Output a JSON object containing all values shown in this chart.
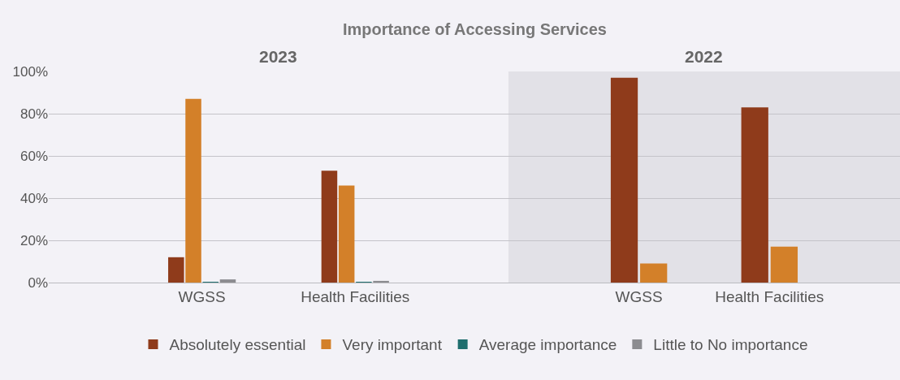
{
  "chart_data": [
    {
      "type": "bar",
      "title": "Importance of Accessing Services",
      "subtitle": "2023",
      "categories": [
        "WGSS",
        "Health Facilities"
      ],
      "series": [
        {
          "name": "Absolutely essential",
          "color": "#8f3b1b",
          "values": [
            12,
            53
          ]
        },
        {
          "name": "Very important",
          "color": "#d38029",
          "values": [
            87,
            46
          ]
        },
        {
          "name": "Average importance",
          "color": "#1f6e6e",
          "values": [
            0.2,
            0.2
          ]
        },
        {
          "name": "Little to No importance",
          "color": "#8c8c90",
          "values": [
            1.5,
            0.8
          ]
        }
      ],
      "ylim": [
        0,
        100
      ],
      "yticks": [
        {
          "value": 0,
          "label": "0%"
        },
        {
          "value": 20,
          "label": "20%"
        },
        {
          "value": 40,
          "label": "40%"
        },
        {
          "value": 60,
          "label": "60%"
        },
        {
          "value": 80,
          "label": "80%"
        },
        {
          "value": 100,
          "label": "100%"
        }
      ],
      "grid": "y",
      "legend": "bottom"
    },
    {
      "type": "bar",
      "subtitle": "2022",
      "categories": [
        "WGSS",
        "Health Facilities"
      ],
      "series": [
        {
          "color": "#8f3b1b",
          "values": [
            97,
            83
          ]
        },
        {
          "color": "#d38029",
          "values": [
            9,
            17
          ]
        }
      ],
      "ylim": [
        0,
        100
      ],
      "yticks": [
        0,
        20,
        40,
        60,
        80,
        100
      ],
      "grid": "y",
      "tick_labels": "x"
    }
  ]
}
